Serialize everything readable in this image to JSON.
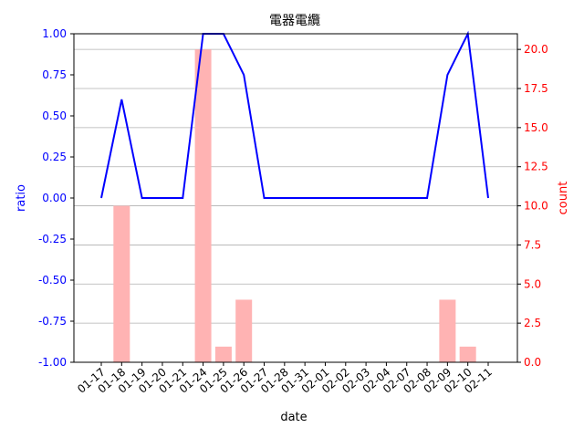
{
  "chart_data": {
    "type": "bar+line",
    "title": "電器電纜",
    "xlabel": "date",
    "ylabel_left": "ratio",
    "ylabel_right": "count",
    "categories": [
      "01-17",
      "01-18",
      "01-19",
      "01-20",
      "01-21",
      "01-24",
      "01-25",
      "01-26",
      "01-27",
      "01-28",
      "01-31",
      "02-01",
      "02-02",
      "02-03",
      "02-04",
      "02-07",
      "02-08",
      "02-09",
      "02-10",
      "02-11"
    ],
    "series": [
      {
        "name": "ratio",
        "type": "line",
        "axis": "left",
        "color": "#0000ff",
        "values": [
          0.0,
          0.6,
          0.0,
          0.0,
          0.0,
          1.0,
          1.0,
          0.75,
          0.0,
          0.0,
          0.0,
          0.0,
          0.0,
          0.0,
          0.0,
          0.0,
          0.0,
          0.75,
          1.0,
          0.0
        ]
      },
      {
        "name": "count",
        "type": "bar",
        "axis": "right",
        "color": "#ffb3b3",
        "values": [
          0,
          10,
          0,
          0,
          0,
          20,
          1,
          4,
          0,
          0,
          0,
          0,
          0,
          0,
          0,
          0,
          0,
          4,
          1,
          0
        ]
      }
    ],
    "ylim_left": [
      -1.0,
      1.0
    ],
    "yticks_left": [
      "-1.00",
      "-0.75",
      "-0.50",
      "-0.25",
      "0.00",
      "0.25",
      "0.50",
      "0.75",
      "1.00"
    ],
    "ylim_right": [
      0,
      21
    ],
    "yticks_right": [
      "0.0",
      "2.5",
      "5.0",
      "7.5",
      "10.0",
      "12.5",
      "15.0",
      "17.5",
      "20.0"
    ],
    "left_axis_color": "#0000ff",
    "right_axis_color": "#ff0000",
    "grid": "horizontal (right axis)"
  }
}
